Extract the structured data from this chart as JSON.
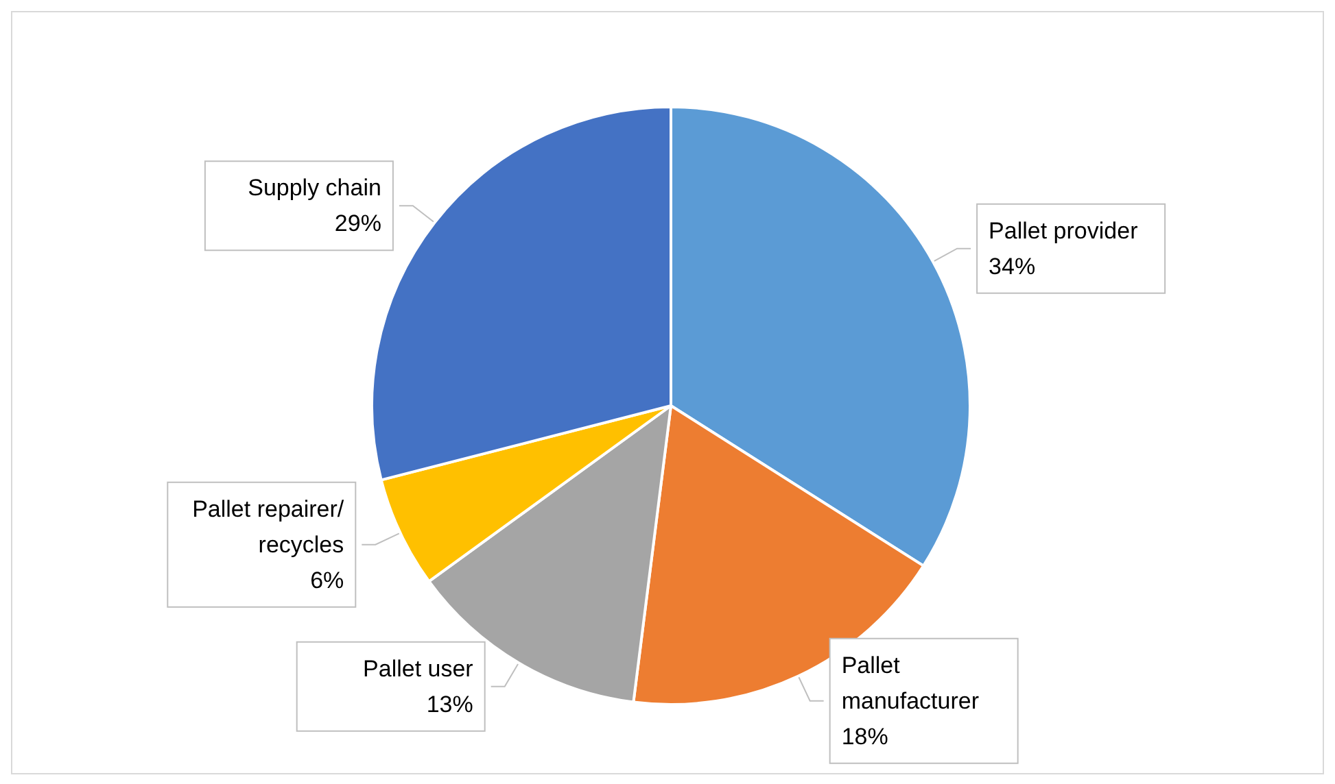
{
  "chart_data": {
    "type": "pie",
    "categories": [
      "Pallet provider",
      "Pallet manufacturer",
      "Pallet user",
      "Pallet repairer/recycles",
      "Supply chain"
    ],
    "values": [
      34,
      18,
      13,
      6,
      29
    ],
    "colors": [
      "#5b9bd5",
      "#ed7d31",
      "#a5a5a5",
      "#ffc000",
      "#4472c4"
    ],
    "value_labels": [
      "34%",
      "18%",
      "13%",
      "6%",
      "29%"
    ],
    "legend": false
  }
}
